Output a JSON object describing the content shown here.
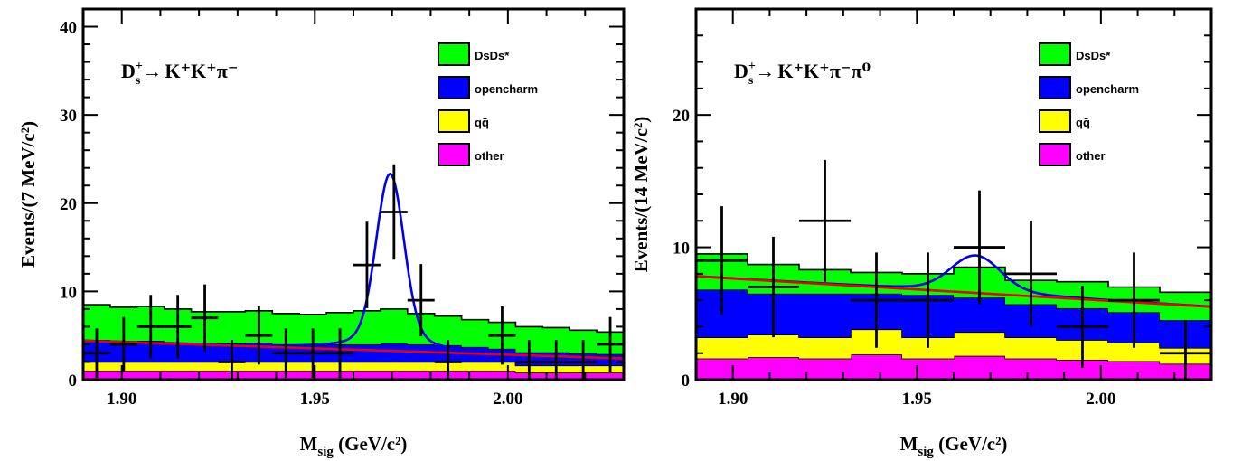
{
  "chart_data": [
    {
      "type": "histogram-fit",
      "decay": {
        "base": "D",
        "sub": "s",
        "sup": "+",
        "arrow": "→",
        "final": "K⁺K⁺π⁻"
      },
      "xlabel": {
        "main": "M",
        "sub": "sig",
        "unit": " (GeV/c²)"
      },
      "ylabel": "Events/(7 MeV/c²)",
      "xlim": [
        1.89,
        2.03
      ],
      "ylim": [
        0,
        42
      ],
      "xticks": [
        {
          "value": 1.9,
          "label": "1.90"
        },
        {
          "value": 1.95,
          "label": "1.95"
        },
        {
          "value": 2.0,
          "label": "2.00"
        }
      ],
      "yticks": [
        {
          "value": 0,
          "label": "0"
        },
        {
          "value": 10,
          "label": "10"
        },
        {
          "value": 20,
          "label": "20"
        },
        {
          "value": 30,
          "label": "30"
        },
        {
          "value": 40,
          "label": "40"
        }
      ],
      "legend": [
        {
          "label": "DsDs*",
          "color": "#00ff00"
        },
        {
          "label": "opencharm",
          "color": "#0000ff"
        },
        {
          "label": "qq̄",
          "color": "#ffff00"
        },
        {
          "label": "other",
          "color": "#ff00ff"
        }
      ],
      "bin_edges": [
        1.89,
        1.897,
        1.904,
        1.911,
        1.918,
        1.925,
        1.932,
        1.939,
        1.946,
        1.953,
        1.96,
        1.967,
        1.974,
        1.981,
        1.988,
        1.995,
        2.002,
        2.009,
        2.016,
        2.023,
        2.03
      ],
      "stack": {
        "other": [
          1.0,
          1.0,
          1.0,
          1.0,
          1.0,
          1.0,
          1.0,
          1.0,
          1.0,
          1.0,
          1.0,
          1.0,
          1.0,
          1.0,
          1.0,
          1.0,
          0.8,
          0.8,
          0.8,
          0.8
        ],
        "qq": [
          1.0,
          1.0,
          1.0,
          1.0,
          1.0,
          1.0,
          1.0,
          1.0,
          1.0,
          1.0,
          1.0,
          1.0,
          1.0,
          1.0,
          1.0,
          1.0,
          0.8,
          0.8,
          0.8,
          0.8
        ],
        "opencharm": [
          2.5,
          2.3,
          2.4,
          2.2,
          2.0,
          2.1,
          2.2,
          2.0,
          1.9,
          2.0,
          2.0,
          2.1,
          2.0,
          1.9,
          1.7,
          1.5,
          1.5,
          1.5,
          1.4,
          1.3
        ],
        "DsDs": [
          4.0,
          3.9,
          3.9,
          3.8,
          3.7,
          3.6,
          3.6,
          3.5,
          3.5,
          3.6,
          3.8,
          3.9,
          3.5,
          3.3,
          3.1,
          3.0,
          2.9,
          2.8,
          2.6,
          2.5
        ]
      },
      "data_points": [
        {
          "x": 1.8935,
          "y": 3,
          "err": 2.8
        },
        {
          "x": 1.9005,
          "y": 4,
          "err": 3.1
        },
        {
          "x": 1.9075,
          "y": 6,
          "err": 3.6
        },
        {
          "x": 1.9145,
          "y": 6,
          "err": 3.6
        },
        {
          "x": 1.9215,
          "y": 7,
          "err": 3.8
        },
        {
          "x": 1.9285,
          "y": 2,
          "err": 2.5
        },
        {
          "x": 1.9355,
          "y": 5,
          "err": 3.3
        },
        {
          "x": 1.9425,
          "y": 3,
          "err": 2.8
        },
        {
          "x": 1.9495,
          "y": 3,
          "err": 2.8
        },
        {
          "x": 1.9565,
          "y": 3,
          "err": 2.8
        },
        {
          "x": 1.9635,
          "y": 13,
          "err": 4.9
        },
        {
          "x": 1.9705,
          "y": 19,
          "err": 5.4
        },
        {
          "x": 1.9775,
          "y": 9,
          "err": 4.1
        },
        {
          "x": 1.9845,
          "y": 2,
          "err": 2.5
        },
        {
          "x": 1.9985,
          "y": 5,
          "err": 3.3
        },
        {
          "x": 2.0055,
          "y": 2,
          "err": 2.5
        },
        {
          "x": 2.0125,
          "y": 2,
          "err": 2.5
        },
        {
          "x": 2.0195,
          "y": 2,
          "err": 2.5
        },
        {
          "x": 2.0265,
          "y": 4,
          "err": 3.1
        }
      ],
      "background_fit": {
        "at_xmin": 4.4,
        "at_xmax": 2.4
      },
      "signal": {
        "mean": 1.9695,
        "sigma": 0.0035,
        "amplitude": 17.0
      }
    },
    {
      "type": "histogram-fit",
      "decay": {
        "base": "D",
        "sub": "s",
        "sup": "+",
        "arrow": "→",
        "final": "K⁺K⁺π⁻π⁰"
      },
      "xlabel": {
        "main": "M",
        "sub": "sig",
        "unit": " (GeV/c²)"
      },
      "ylabel": "Events/(14 MeV/c²)",
      "xlim": [
        1.89,
        2.03
      ],
      "ylim": [
        0,
        28
      ],
      "xticks": [
        {
          "value": 1.9,
          "label": "1.90"
        },
        {
          "value": 1.95,
          "label": "1.95"
        },
        {
          "value": 2.0,
          "label": "2.00"
        }
      ],
      "yticks": [
        {
          "value": 0,
          "label": "0"
        },
        {
          "value": 10,
          "label": "10"
        },
        {
          "value": 20,
          "label": "20"
        }
      ],
      "legend": [
        {
          "label": "DsDs*",
          "color": "#00ff00"
        },
        {
          "label": "opencharm",
          "color": "#0000ff"
        },
        {
          "label": "qq̄",
          "color": "#ffff00"
        },
        {
          "label": "other",
          "color": "#ff00ff"
        }
      ],
      "bin_edges": [
        1.89,
        1.904,
        1.918,
        1.932,
        1.946,
        1.96,
        1.974,
        1.988,
        2.002,
        2.016,
        2.03
      ],
      "stack": {
        "other": [
          1.6,
          1.7,
          1.6,
          1.9,
          1.6,
          1.8,
          1.6,
          1.5,
          1.4,
          1.2
        ],
        "qq": [
          1.6,
          1.7,
          1.6,
          1.9,
          1.6,
          1.8,
          1.6,
          1.5,
          1.4,
          1.2
        ],
        "opencharm": [
          3.6,
          3.1,
          3.3,
          2.7,
          3.2,
          2.6,
          2.5,
          2.4,
          2.3,
          2.1
        ],
        "DsDs": [
          2.7,
          2.2,
          1.8,
          1.6,
          1.6,
          2.3,
          1.8,
          2.0,
          1.9,
          2.1
        ]
      },
      "data_points": [
        {
          "x": 1.897,
          "y": 9,
          "err": 4.1,
          "xerr": 0.007
        },
        {
          "x": 1.911,
          "y": 7,
          "err": 3.8,
          "xerr": 0.007
        },
        {
          "x": 1.925,
          "y": 12,
          "err": 4.6,
          "xerr": 0.007
        },
        {
          "x": 1.939,
          "y": 6,
          "err": 3.6,
          "xerr": 0.007
        },
        {
          "x": 1.953,
          "y": 6,
          "err": 3.6,
          "xerr": 0.007
        },
        {
          "x": 1.967,
          "y": 10,
          "err": 4.3,
          "xerr": 0.007
        },
        {
          "x": 1.981,
          "y": 8,
          "err": 4.0,
          "xerr": 0.007
        },
        {
          "x": 1.995,
          "y": 4,
          "err": 3.1,
          "xerr": 0.007
        },
        {
          "x": 2.009,
          "y": 6,
          "err": 3.6,
          "xerr": 0.007
        },
        {
          "x": 2.023,
          "y": 2,
          "err": 2.5,
          "xerr": 0.007
        }
      ],
      "background_fit": {
        "at_xmin": 7.8,
        "at_xmax": 5.5
      },
      "signal": {
        "mean": 1.966,
        "sigma": 0.0065,
        "amplitude": 2.4
      }
    }
  ]
}
